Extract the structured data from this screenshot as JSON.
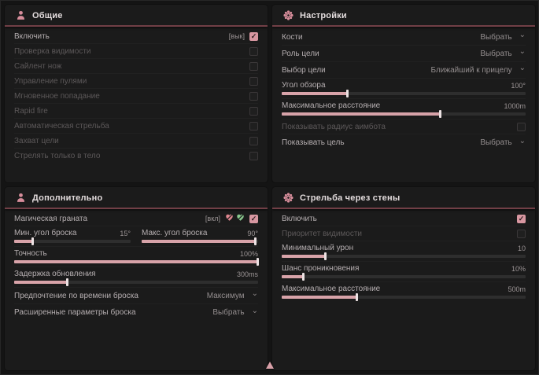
{
  "theme": {
    "accent": "#d79aa3",
    "accent_dark": "#713f46",
    "panel_bg": "#1b1b1b",
    "check_glyph": "✓",
    "chevron_glyph": "⌄"
  },
  "cursor": {
    "name": "cursor-up-icon"
  },
  "panels": {
    "general": {
      "title": "Общие",
      "icon": "person-icon",
      "rows": [
        {
          "type": "checkbox",
          "label": "Включить",
          "suffix": "[вык]",
          "checked": true,
          "dim": false
        },
        {
          "type": "checkbox",
          "label": "Проверка видимости",
          "checked": false,
          "dim": true
        },
        {
          "type": "checkbox",
          "label": "Сайлент нож",
          "checked": false,
          "dim": true
        },
        {
          "type": "checkbox",
          "label": "Управление пулями",
          "checked": false,
          "dim": true
        },
        {
          "type": "checkbox",
          "label": "Мгновенное попадание",
          "checked": false,
          "dim": true
        },
        {
          "type": "checkbox",
          "label": "Rapid fire",
          "checked": false,
          "dim": true
        },
        {
          "type": "checkbox",
          "label": "Автоматическая стрельба",
          "checked": false,
          "dim": true
        },
        {
          "type": "checkbox",
          "label": "Захват цели",
          "checked": false,
          "dim": true
        },
        {
          "type": "checkbox",
          "label": "Стрелять только в тело",
          "checked": false,
          "dim": true
        }
      ]
    },
    "settings": {
      "title": "Настройки",
      "icon": "gear-icon",
      "rows": [
        {
          "type": "dropdown",
          "label": "Кости",
          "value": "Выбрать"
        },
        {
          "type": "dropdown",
          "label": "Роль цели",
          "value": "Выбрать"
        },
        {
          "type": "dropdown",
          "label": "Выбор цели",
          "value": "Ближайший к прицелу"
        },
        {
          "type": "slider",
          "label": "Угол обзора",
          "value": "100°",
          "fill": 27
        },
        {
          "type": "slider",
          "label": "Максимальное расстояние",
          "value": "1000m",
          "fill": 65
        },
        {
          "type": "checkbox",
          "label": "Показывать радиус аимбота",
          "checked": false,
          "dim": true
        },
        {
          "type": "dropdown",
          "label": "Показывать цель",
          "value": "Выбрать"
        }
      ]
    },
    "additional": {
      "title": "Дополнительно",
      "icon": "person-icon",
      "rows": [
        {
          "type": "checkbox",
          "label": "Магическая граната",
          "suffix": "[вкл]",
          "checked": true,
          "dim": false,
          "icons": [
            {
              "name": "heart-slash-pink-icon",
              "color": "#e08790"
            },
            {
              "name": "heart-slash-green-icon",
              "color": "#8bc98f"
            }
          ]
        },
        {
          "type": "dual-slider",
          "left": {
            "label": "Мин. угол броска",
            "value": "15°",
            "fill": 16
          },
          "right": {
            "label": "Макс. угол броска",
            "value": "90°",
            "fill": 98
          }
        },
        {
          "type": "slider",
          "label": "Точность",
          "value": "100%",
          "fill": 100
        },
        {
          "type": "slider",
          "label": "Задержка обновления",
          "value": "300ms",
          "fill": 22
        },
        {
          "type": "dropdown",
          "label": "Предпочтение по времени броска",
          "value": "Максимум"
        },
        {
          "type": "dropdown",
          "label": "Расширенные параметры броска",
          "value": "Выбрать"
        }
      ]
    },
    "wallbang": {
      "title": "Стрельба через стены",
      "icon": "gear-icon",
      "rows": [
        {
          "type": "checkbox",
          "label": "Включить",
          "checked": true,
          "dim": false
        },
        {
          "type": "checkbox",
          "label": "Приоритет видимости",
          "checked": false,
          "dim": true
        },
        {
          "type": "slider",
          "label": "Минимальный урон",
          "value": "10",
          "fill": 18
        },
        {
          "type": "slider",
          "label": "Шанс проникновения",
          "value": "10%",
          "fill": 9
        },
        {
          "type": "slider",
          "label": "Максимальное расстояние",
          "value": "500m",
          "fill": 31
        }
      ]
    }
  }
}
